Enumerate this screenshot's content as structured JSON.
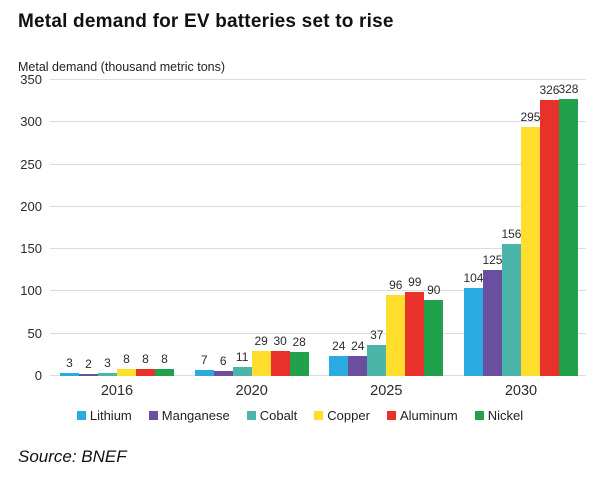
{
  "title": "Metal demand for EV batteries set to rise",
  "y_axis_title": "Metal demand (thousand metric tons)",
  "source": "Source: BNEF",
  "chart_data": {
    "type": "bar",
    "title": "Metal demand for EV batteries set to rise",
    "ylabel": "Metal demand (thousand metric tons)",
    "xlabel": "",
    "categories": [
      "2016",
      "2020",
      "2025",
      "2030"
    ],
    "series": [
      {
        "name": "Lithium",
        "color": "#29ABE2",
        "values": [
          3,
          7,
          24,
          104
        ]
      },
      {
        "name": "Manganese",
        "color": "#6A4FA0",
        "values": [
          2,
          6,
          24,
          125
        ]
      },
      {
        "name": "Cobalt",
        "color": "#4BB5A9",
        "values": [
          3,
          11,
          37,
          156
        ]
      },
      {
        "name": "Copper",
        "color": "#FFDE2D",
        "values": [
          8,
          29,
          96,
          295
        ]
      },
      {
        "name": "Aluminum",
        "color": "#E8312B",
        "values": [
          8,
          30,
          99,
          326
        ]
      },
      {
        "name": "Nickel",
        "color": "#21A14B",
        "values": [
          8,
          28,
          90,
          328
        ]
      }
    ],
    "ylim": [
      0,
      350
    ],
    "yticks": [
      0,
      50,
      100,
      150,
      200,
      250,
      300,
      350
    ],
    "grid": true,
    "legend_position": "bottom",
    "gridline_color": "#dcdcdc"
  }
}
